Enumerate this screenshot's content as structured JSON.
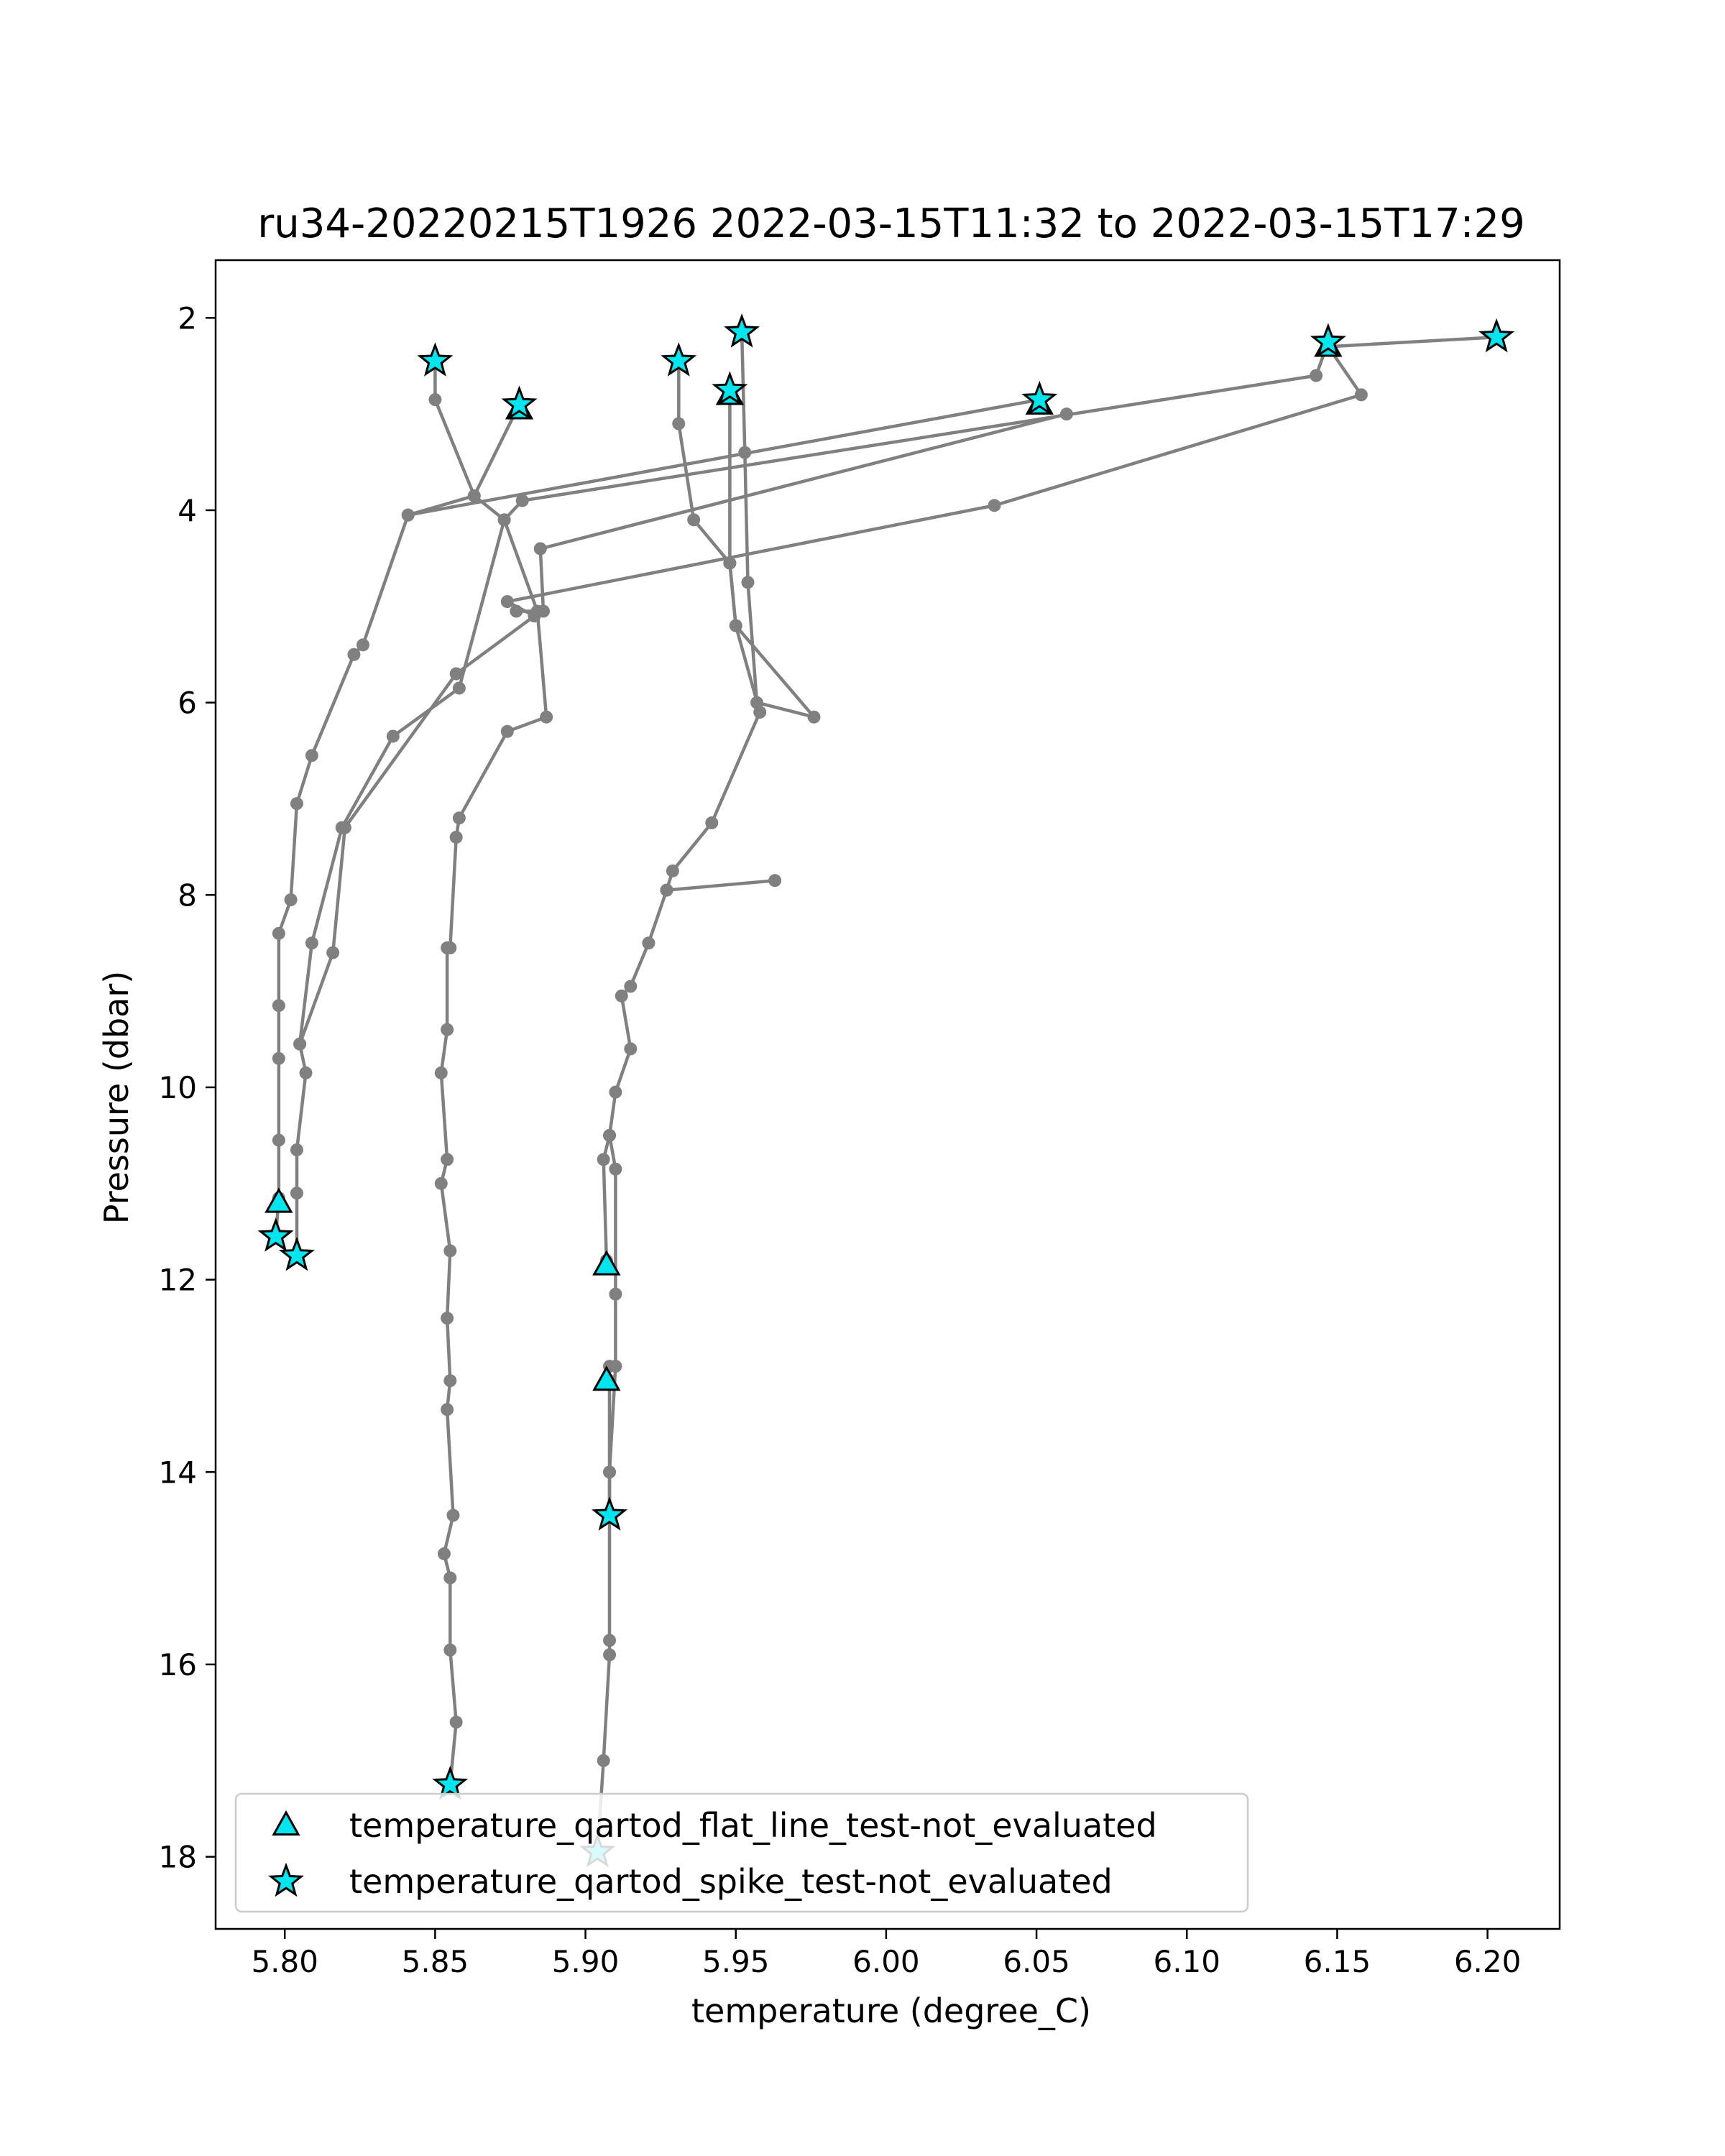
{
  "chart_data": {
    "type": "line",
    "title": "ru34-20220215T1926 2022-03-15T11:32 to 2022-03-15T17:29",
    "xlabel": "temperature (degree_C)",
    "ylabel": "Pressure (dbar)",
    "xlim": [
      5.777,
      6.224
    ],
    "ylim": [
      18.75,
      1.4
    ],
    "y_inverted": true,
    "grid": false,
    "xticks": [
      5.8,
      5.85,
      5.9,
      5.95,
      6.0,
      6.05,
      6.1,
      6.15,
      6.2
    ],
    "xtick_labels": [
      "5.80",
      "5.85",
      "5.90",
      "5.95",
      "6.00",
      "6.05",
      "6.10",
      "6.15",
      "6.20"
    ],
    "yticks": [
      2,
      4,
      6,
      8,
      10,
      12,
      14,
      16,
      18
    ],
    "ytick_labels": [
      "2",
      "4",
      "6",
      "8",
      "10",
      "12",
      "14",
      "16",
      "18"
    ],
    "line_color": "#808080",
    "marker_color": "#00e5ee",
    "legend_position": "lower left",
    "series": [
      {
        "points": [
          [
            5.85,
            2.45
          ],
          [
            5.85,
            2.85
          ],
          [
            5.863,
            3.85
          ],
          [
            5.873,
            4.1
          ],
          [
            5.884,
            5.05
          ],
          [
            5.887,
            6.15
          ],
          [
            5.874,
            6.3
          ],
          [
            5.858,
            7.2
          ],
          [
            5.857,
            7.4
          ],
          [
            5.855,
            8.55
          ],
          [
            5.854,
            8.55
          ],
          [
            5.854,
            9.4
          ],
          [
            5.852,
            9.85
          ],
          [
            5.854,
            10.75
          ],
          [
            5.852,
            11.0
          ],
          [
            5.855,
            11.7
          ],
          [
            5.854,
            12.4
          ],
          [
            5.855,
            13.05
          ],
          [
            5.854,
            13.35
          ],
          [
            5.856,
            14.45
          ],
          [
            5.853,
            14.85
          ],
          [
            5.855,
            15.1
          ],
          [
            5.855,
            15.85
          ],
          [
            5.857,
            16.6
          ],
          [
            5.855,
            17.25
          ]
        ]
      },
      {
        "points": [
          [
            5.878,
            2.9
          ],
          [
            5.863,
            3.85
          ],
          [
            5.841,
            4.05
          ],
          [
            5.826,
            5.4
          ],
          [
            5.823,
            5.5
          ],
          [
            5.809,
            6.55
          ],
          [
            5.804,
            7.05
          ],
          [
            5.802,
            8.05
          ],
          [
            5.798,
            8.4
          ],
          [
            5.798,
            9.15
          ],
          [
            5.798,
            9.7
          ],
          [
            5.798,
            10.55
          ],
          [
            5.798,
            11.15
          ],
          [
            5.797,
            11.55
          ]
        ]
      },
      {
        "points": [
          [
            5.931,
            2.45
          ],
          [
            5.931,
            3.1
          ],
          [
            5.936,
            4.1
          ],
          [
            5.948,
            4.55
          ],
          [
            5.95,
            5.2
          ],
          [
            5.958,
            6.1
          ],
          [
            5.942,
            7.25
          ],
          [
            5.929,
            7.75
          ],
          [
            5.927,
            7.95
          ],
          [
            5.921,
            8.5
          ],
          [
            5.915,
            8.95
          ],
          [
            5.912,
            9.05
          ],
          [
            5.915,
            9.6
          ],
          [
            5.91,
            10.05
          ],
          [
            5.908,
            10.5
          ],
          [
            5.91,
            10.85
          ],
          [
            5.91,
            12.15
          ],
          [
            5.91,
            12.9
          ],
          [
            5.908,
            14.0
          ],
          [
            5.908,
            14.45
          ]
        ]
      },
      {
        "points": [
          [
            5.948,
            2.75
          ],
          [
            5.948,
            4.55
          ],
          [
            5.95,
            5.2
          ],
          [
            5.976,
            6.15
          ],
          [
            5.957,
            6.0
          ],
          [
            5.954,
            4.75
          ],
          [
            5.953,
            3.4
          ],
          [
            5.952,
            2.15
          ]
        ]
      },
      {
        "points": [
          [
            6.051,
            2.85
          ],
          [
            5.841,
            4.05
          ]
        ]
      },
      {
        "points": [
          [
            6.147,
            2.25
          ],
          [
            6.143,
            2.6
          ],
          [
            5.879,
            3.9
          ],
          [
            5.873,
            4.1
          ],
          [
            5.858,
            5.85
          ],
          [
            5.836,
            6.35
          ],
          [
            5.819,
            7.3
          ],
          [
            5.809,
            8.5
          ],
          [
            5.805,
            9.55
          ],
          [
            5.807,
            9.85
          ],
          [
            5.804,
            10.65
          ],
          [
            5.804,
            11.1
          ],
          [
            5.804,
            11.75
          ]
        ]
      },
      {
        "points": [
          [
            6.203,
            2.2
          ],
          [
            6.147,
            2.3
          ],
          [
            6.158,
            2.8
          ],
          [
            6.036,
            3.95
          ],
          [
            5.874,
            4.95
          ],
          [
            5.883,
            5.1
          ],
          [
            5.857,
            5.7
          ],
          [
            5.82,
            7.3
          ],
          [
            5.816,
            8.6
          ],
          [
            5.805,
            9.55
          ]
        ]
      },
      {
        "points": [
          [
            6.06,
            3.0
          ],
          [
            5.885,
            4.4
          ],
          [
            5.886,
            5.05
          ],
          [
            5.877,
            5.05
          ]
        ]
      },
      {
        "points": [
          [
            5.963,
            7.85
          ],
          [
            5.927,
            7.95
          ]
        ]
      },
      {
        "points": [
          [
            5.907,
            11.8
          ],
          [
            5.906,
            10.75
          ],
          [
            5.908,
            10.5
          ]
        ]
      },
      {
        "points": [
          [
            5.908,
            12.9
          ],
          [
            5.908,
            13.05
          ],
          [
            5.908,
            14.0
          ],
          [
            5.908,
            15.75
          ],
          [
            5.908,
            15.9
          ],
          [
            5.906,
            17.0
          ],
          [
            5.904,
            17.95
          ]
        ]
      }
    ],
    "flat_line_markers": [
      [
        5.798,
        11.2
      ],
      [
        5.907,
        11.85
      ],
      [
        5.907,
        13.05
      ],
      [
        6.147,
        2.3
      ],
      [
        6.051,
        2.9
      ],
      [
        5.948,
        2.8
      ],
      [
        5.878,
        2.95
      ]
    ],
    "spike_markers": [
      [
        5.85,
        2.45
      ],
      [
        5.878,
        2.9
      ],
      [
        5.931,
        2.45
      ],
      [
        5.948,
        2.75
      ],
      [
        5.952,
        2.15
      ],
      [
        6.051,
        2.85
      ],
      [
        6.147,
        2.25
      ],
      [
        6.203,
        2.2
      ],
      [
        5.797,
        11.55
      ],
      [
        5.804,
        11.75
      ],
      [
        5.908,
        14.45
      ],
      [
        5.855,
        17.25
      ],
      [
        5.904,
        17.95
      ]
    ],
    "legend": [
      {
        "marker": "triangle",
        "label": "temperature_qartod_flat_line_test-not_evaluated"
      },
      {
        "marker": "star",
        "label": "temperature_qartod_spike_test-not_evaluated"
      }
    ]
  }
}
